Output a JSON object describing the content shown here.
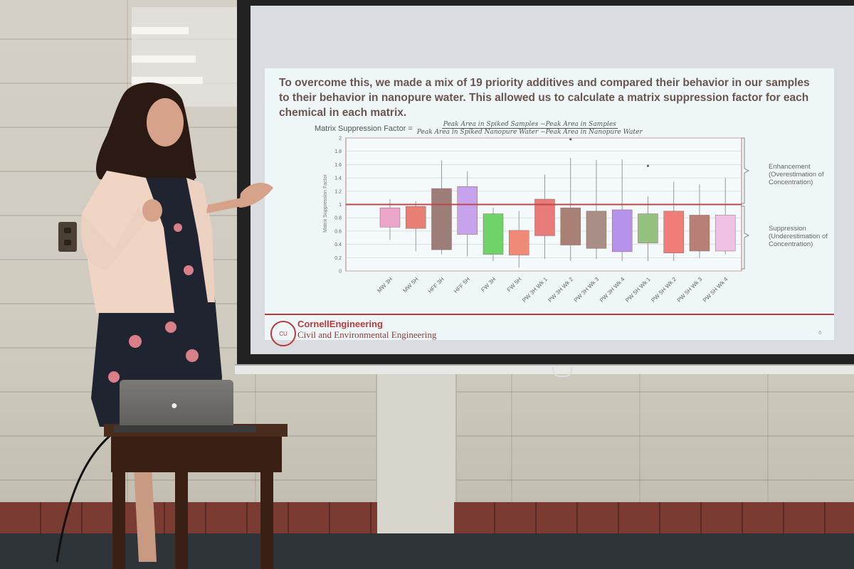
{
  "slide": {
    "heading": "To overcome this, we made a mix of 19 priority additives and compared their behavior in our samples to their behavior in nanopure water. This allowed us to calculate a matrix suppression factor for each chemical in each matrix.",
    "formula_label": "Matrix Suppression Factor =",
    "formula_numerator": "Peak Area in Spiked Samples −Peak Area in Samples",
    "formula_denominator": "Peak Area in Spiked Nanopure Water −Peak Area in Nanopure Water",
    "enhancement_note": "Enhancement (Overestimation of Concentration)",
    "suppression_note": "Suppression (Underestimation of Concentration)",
    "brand": "CornellEngineering",
    "dept": "Civil and Environmental Engineering",
    "seal_text": "CU",
    "page_number": "6"
  },
  "chart_data": {
    "type": "box",
    "xlabel": "",
    "ylabel": "Matrix Suppression Factor",
    "ylim": [
      0,
      2
    ],
    "yticks": [
      "0",
      "0.2",
      "0.4",
      "0.6",
      "0.8",
      "1",
      "1.2",
      "1.4",
      "1.6",
      "1.8",
      "2"
    ],
    "reference_line": 1,
    "categories": [
      "MW 3H",
      "MW 5H",
      "HFF 3H",
      "HFF 5H",
      "FW 3H",
      "FW 5H",
      "PW 3H Wk 1",
      "PW 3H Wk 2",
      "PW 3H Wk 3",
      "PW 3H Wk 4",
      "PW 5H Wk 1",
      "PW 5H Wk 2",
      "PW 5H Wk 3",
      "PW 5H Wk 4"
    ],
    "boxes": [
      {
        "low": 0.47,
        "q1": 0.66,
        "q3": 0.95,
        "high": 1.08
      },
      {
        "low": 0.3,
        "q1": 0.64,
        "q3": 0.97,
        "high": 1.05
      },
      {
        "low": 0.25,
        "q1": 0.32,
        "q3": 1.24,
        "high": 1.66
      },
      {
        "low": 0.22,
        "q1": 0.55,
        "q3": 1.27,
        "high": 1.5
      },
      {
        "low": 0.15,
        "q1": 0.25,
        "q3": 0.86,
        "high": 0.95
      },
      {
        "low": 0.05,
        "q1": 0.24,
        "q3": 0.61,
        "high": 0.9
      },
      {
        "low": 0.18,
        "q1": 0.53,
        "q3": 1.08,
        "high": 1.45
      },
      {
        "low": 0.15,
        "q1": 0.39,
        "q3": 0.95,
        "high": 1.7
      },
      {
        "low": 0.18,
        "q1": 0.34,
        "q3": 0.9,
        "high": 1.67
      },
      {
        "low": 0.15,
        "q1": 0.29,
        "q3": 0.92,
        "high": 1.68
      },
      {
        "low": 0.15,
        "q1": 0.42,
        "q3": 0.86,
        "high": 1.12
      },
      {
        "low": 0.15,
        "q1": 0.27,
        "q3": 0.9,
        "high": 1.34
      },
      {
        "low": 0.2,
        "q1": 0.3,
        "q3": 0.84,
        "high": 1.3
      },
      {
        "low": 0.25,
        "q1": 0.3,
        "q3": 0.84,
        "high": 1.4
      }
    ],
    "outliers": [
      {
        "box": 7,
        "y": 1.98
      },
      {
        "box": 10,
        "y": 1.58
      }
    ],
    "colors": [
      "#e9a6c8",
      "#e87f74",
      "#9d7d78",
      "#c7a3ee",
      "#6fd36a",
      "#f08a78",
      "#e97a7a",
      "#a98076",
      "#a98e86",
      "#b792ec",
      "#94c27e",
      "#f07d78",
      "#b77f75",
      "#efc1e5"
    ],
    "reference_color": "#c04848"
  }
}
